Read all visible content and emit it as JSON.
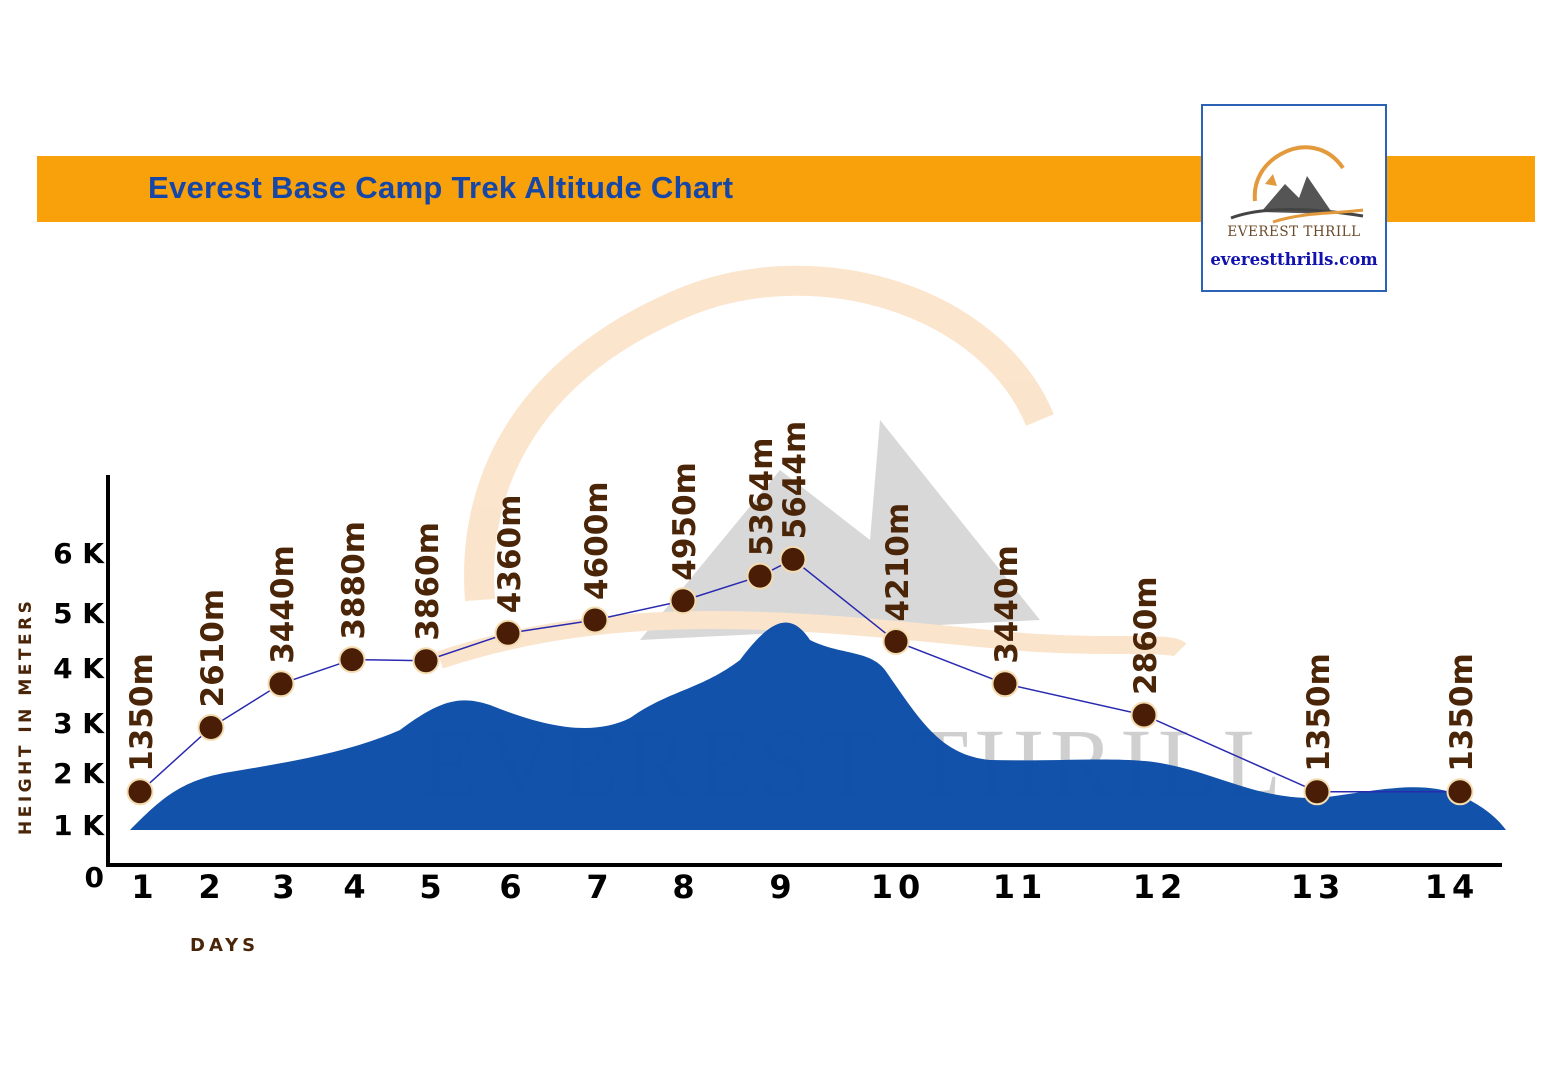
{
  "title": "Everest Base Camp Trek Altitude Chart",
  "logo": {
    "name": "EVEREST THRILL",
    "url": "everestthrills.com"
  },
  "watermark": "EVEREST THRILL",
  "colors": {
    "banner": "#f9a10b",
    "title": "#1747a6",
    "area": "#0a4ca8",
    "point": "#4a1e06",
    "line": "#2a2ab0",
    "label": "#4a2508"
  },
  "chart_data": {
    "type": "line",
    "title": "Everest Base Camp Trek Altitude Chart",
    "xlabel": "DAYS",
    "ylabel": "HEIGHT IN METERS",
    "x_ticks": [
      "1",
      "2",
      "3",
      "4",
      "5",
      "6",
      "7",
      "8",
      "9",
      "10",
      "11",
      "12",
      "13",
      "14"
    ],
    "y_ticks": [
      {
        "value": 0,
        "label": "0"
      },
      {
        "value": 1000,
        "label": "1 K"
      },
      {
        "value": 2000,
        "label": "2 K"
      },
      {
        "value": 3000,
        "label": "3 K"
      },
      {
        "value": 4000,
        "label": "4 K"
      },
      {
        "value": 5000,
        "label": "5 K"
      },
      {
        "value": 6000,
        "label": "6 K"
      }
    ],
    "ylim": [
      0,
      6000
    ],
    "points": [
      {
        "day": 1,
        "value": 1350,
        "label": "1350m"
      },
      {
        "day": 2,
        "value": 2610,
        "label": "2610m"
      },
      {
        "day": 3,
        "value": 3440,
        "label": "3440m"
      },
      {
        "day": 4,
        "value": 3880,
        "label": "3880m"
      },
      {
        "day": 5,
        "value": 3860,
        "label": "3860m"
      },
      {
        "day": 6,
        "value": 4360,
        "label": "4360m"
      },
      {
        "day": 7,
        "value": 4600,
        "label": "4600m"
      },
      {
        "day": 8,
        "value": 4950,
        "label": "4950m"
      },
      {
        "day": 8.7,
        "value": 5364,
        "label": "5364m"
      },
      {
        "day": 9,
        "value": 5644,
        "label": "5644m"
      },
      {
        "day": 10,
        "value": 4210,
        "label": "4210m"
      },
      {
        "day": 11,
        "value": 3440,
        "label": "3440m"
      },
      {
        "day": 12,
        "value": 2860,
        "label": "2860m"
      },
      {
        "day": 13,
        "value": 1350,
        "label": "1350m"
      },
      {
        "day": 14,
        "value": 1350,
        "label": "1350m"
      }
    ]
  }
}
